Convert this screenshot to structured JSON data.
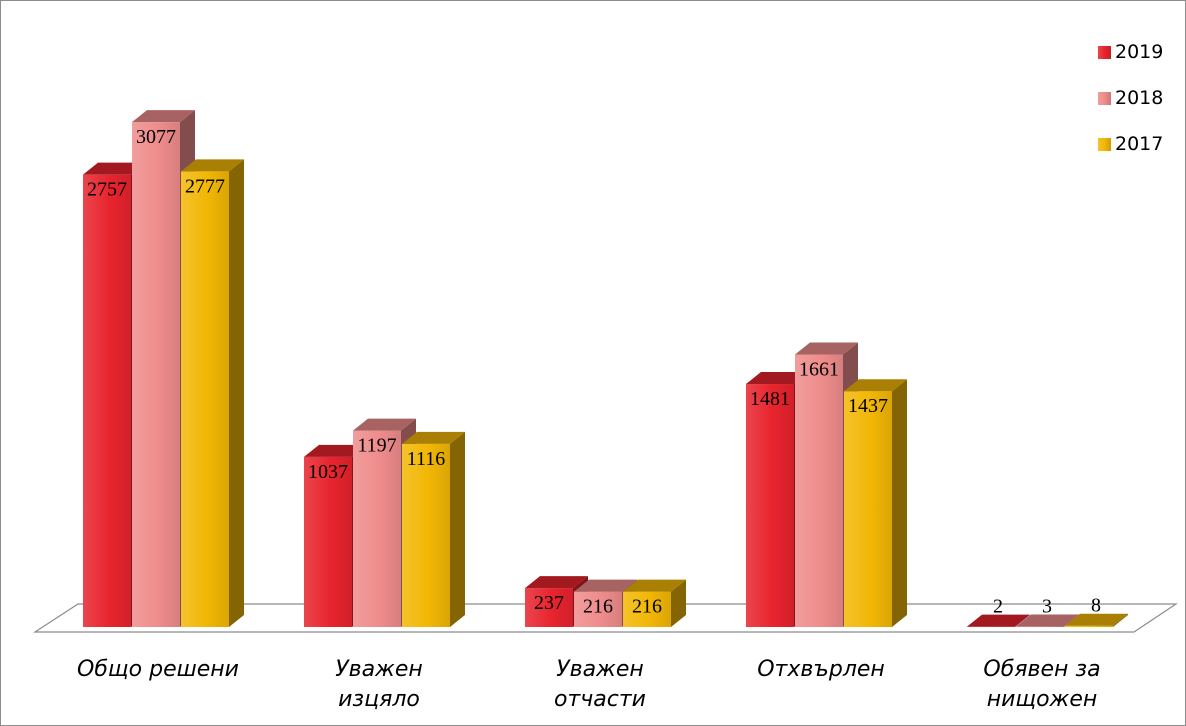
{
  "chart_data": {
    "type": "bar",
    "title": "",
    "xlabel": "",
    "ylabel": "",
    "ylim": [
      0,
      3500
    ],
    "grid": false,
    "legend_position": "top-right",
    "categories": [
      [
        "Общо решени"
      ],
      [
        "Уважен",
        "изцяло"
      ],
      [
        "Уважен",
        "отчасти"
      ],
      [
        "Отхвърлен"
      ],
      [
        "Обявен за",
        "нищожен"
      ]
    ],
    "series": [
      {
        "name": "2019",
        "color": "#e8242e",
        "values": [
          2757,
          1037,
          237,
          1481,
          2
        ]
      },
      {
        "name": "2018",
        "color": "#ef8c8c",
        "values": [
          3077,
          1197,
          216,
          1661,
          3
        ]
      },
      {
        "name": "2017",
        "color": "#f2b705",
        "values": [
          2777,
          1116,
          216,
          1437,
          8
        ]
      }
    ]
  }
}
